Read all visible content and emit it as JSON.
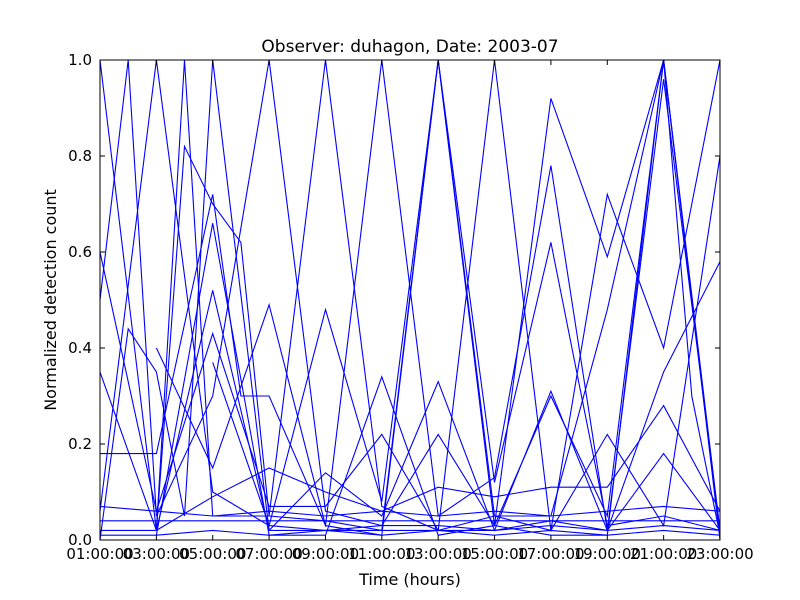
{
  "chart_data": {
    "type": "line",
    "title": "Observer: duhagon, Date: 2003-07",
    "xlabel": "Time (hours)",
    "ylabel": "Normalized detection count",
    "xlim": [
      1,
      23
    ],
    "ylim": [
      0.0,
      1.0
    ],
    "x_ticks": [
      {
        "value": 1,
        "label": "01:00:00"
      },
      {
        "value": 3,
        "label": "03:00:00"
      },
      {
        "value": 5,
        "label": "05:00:00"
      },
      {
        "value": 7,
        "label": "07:00:00"
      },
      {
        "value": 9,
        "label": "09:00:00"
      },
      {
        "value": 11,
        "label": "11:00:00"
      },
      {
        "value": 13,
        "label": "13:00:00"
      },
      {
        "value": 15,
        "label": "15:00:00"
      },
      {
        "value": 17,
        "label": "17:00:00"
      },
      {
        "value": 19,
        "label": "19:00:00"
      },
      {
        "value": 21,
        "label": "21:00:00"
      },
      {
        "value": 23,
        "label": "23:00:00"
      }
    ],
    "y_ticks": [
      {
        "value": 0.0,
        "label": "0.0"
      },
      {
        "value": 0.2,
        "label": "0.2"
      },
      {
        "value": 0.4,
        "label": "0.4"
      },
      {
        "value": 0.6,
        "label": "0.6"
      },
      {
        "value": 0.8,
        "label": "0.8"
      },
      {
        "value": 1.0,
        "label": "1.0"
      }
    ],
    "grid": false,
    "legend": "none",
    "line_color": "#0000ff",
    "series": [
      {
        "x": [
          1,
          3,
          4,
          5,
          6,
          7,
          9,
          11,
          13,
          15,
          17,
          19,
          21,
          22,
          23
        ],
        "y": [
          1.0,
          0.02,
          0.82,
          0.7,
          0.62,
          0.05,
          0.04,
          0.02,
          1.0,
          0.03,
          0.92,
          0.59,
          1.0,
          0.3,
          0.01
        ]
      },
      {
        "x": [
          1,
          2,
          3,
          5,
          7,
          9,
          11,
          13,
          15,
          17,
          19,
          21,
          23
        ],
        "y": [
          0.5,
          1.0,
          0.05,
          0.3,
          1.0,
          0.06,
          0.03,
          0.22,
          0.03,
          0.3,
          0.05,
          1.0,
          0.0
        ]
      },
      {
        "x": [
          1,
          3,
          5,
          7,
          9,
          11,
          13,
          15,
          17,
          19,
          21,
          23
        ],
        "y": [
          0.06,
          1.0,
          0.1,
          0.03,
          0.48,
          0.08,
          1.0,
          0.05,
          0.02,
          0.72,
          0.4,
          1.0
        ]
      },
      {
        "x": [
          1,
          3,
          4,
          5,
          7,
          9,
          11,
          13,
          15,
          17,
          19,
          21,
          23
        ],
        "y": [
          0.35,
          0.02,
          1.0,
          0.05,
          0.05,
          1.0,
          0.07,
          0.02,
          1.0,
          0.02,
          0.22,
          0.03,
          0.8
        ]
      },
      {
        "x": [
          1,
          3,
          5,
          6,
          7,
          9,
          11,
          13,
          15,
          17,
          19,
          21,
          23
        ],
        "y": [
          0.18,
          0.18,
          0.72,
          0.3,
          0.3,
          0.03,
          1.0,
          0.05,
          0.13,
          0.78,
          0.02,
          0.96,
          0.02
        ]
      },
      {
        "x": [
          1,
          2,
          3,
          4,
          5,
          7,
          9,
          11,
          13,
          15,
          17,
          19,
          21,
          23
        ],
        "y": [
          0.0,
          0.44,
          0.35,
          0.05,
          1.0,
          0.02,
          0.14,
          0.05,
          0.33,
          0.02,
          0.31,
          0.02,
          0.35,
          0.58
        ]
      },
      {
        "x": [
          1,
          3,
          5,
          7,
          9,
          11,
          13,
          15,
          17,
          19,
          21,
          23
        ],
        "y": [
          0.6,
          0.06,
          0.43,
          0.07,
          0.07,
          0.22,
          0.02,
          0.05,
          0.05,
          0.48,
          1.0,
          0.02
        ]
      },
      {
        "x": [
          3,
          5,
          7,
          9,
          11,
          13,
          15,
          17,
          19,
          21,
          23
        ],
        "y": [
          0.4,
          0.15,
          0.49,
          0.03,
          0.01,
          1.0,
          0.12,
          0.62,
          0.03,
          0.05,
          0.02
        ]
      },
      {
        "x": [
          1,
          3,
          5,
          7,
          9,
          11,
          13,
          15,
          17,
          19,
          21,
          23
        ],
        "y": [
          0.04,
          0.04,
          0.04,
          0.04,
          0.04,
          0.04,
          0.04,
          0.04,
          0.04,
          0.04,
          0.04,
          0.04
        ]
      },
      {
        "x": [
          1,
          3,
          5,
          7,
          9,
          11,
          13,
          15,
          17,
          19,
          21,
          23
        ],
        "y": [
          0.01,
          0.01,
          0.02,
          0.01,
          0.02,
          0.01,
          0.02,
          0.01,
          0.02,
          0.01,
          0.02,
          0.01
        ]
      },
      {
        "x": [
          1,
          3,
          5,
          7,
          9,
          11,
          13,
          15,
          17,
          19,
          21,
          23
        ],
        "y": [
          0.07,
          0.06,
          0.05,
          0.06,
          0.05,
          0.06,
          0.05,
          0.06,
          0.05,
          0.06,
          0.07,
          0.06
        ]
      },
      {
        "x": [
          3,
          5,
          7,
          9,
          11,
          13,
          15,
          17,
          19,
          21,
          23
        ],
        "y": [
          0.02,
          0.09,
          0.15,
          0.1,
          0.06,
          0.11,
          0.09,
          0.11,
          0.11,
          0.28,
          0.06
        ]
      },
      {
        "x": [
          5,
          7,
          9,
          11,
          13,
          15,
          17,
          19,
          21,
          23
        ],
        "y": [
          0.37,
          0.03,
          0.02,
          0.03,
          0.03,
          0.02,
          0.03,
          0.02,
          0.03,
          0.02
        ]
      },
      {
        "x": [
          3,
          5,
          7,
          9,
          11,
          13,
          15,
          17,
          19,
          21,
          23
        ],
        "y": [
          0.01,
          0.66,
          0.01,
          0.01,
          0.34,
          0.01,
          0.03,
          0.01,
          0.01,
          1.0,
          0.01
        ]
      },
      {
        "x": [
          1,
          3,
          5,
          7,
          9,
          11,
          13,
          15,
          17,
          19,
          21,
          23
        ],
        "y": [
          0.02,
          0.02,
          0.52,
          0.02,
          0.02,
          0.02,
          0.02,
          0.02,
          0.04,
          0.02,
          0.18,
          0.02
        ]
      }
    ]
  }
}
